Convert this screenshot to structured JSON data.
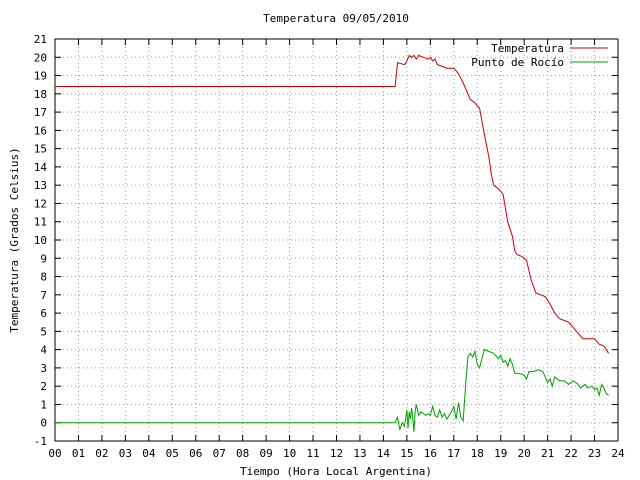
{
  "chart_data": {
    "type": "line",
    "title": "Temperatura 09/05/2010",
    "xlabel": "Tiempo (Hora Local Argentina)",
    "ylabel": "Temperatura (Grados Celsius)",
    "xlim": [
      0,
      24
    ],
    "ylim": [
      -1,
      21
    ],
    "x_ticks": [
      0,
      1,
      2,
      3,
      4,
      5,
      6,
      7,
      8,
      9,
      10,
      11,
      12,
      13,
      14,
      15,
      16,
      17,
      18,
      19,
      20,
      21,
      22,
      23,
      24
    ],
    "x_tick_labels": [
      "00",
      "01",
      "02",
      "03",
      "04",
      "05",
      "06",
      "07",
      "08",
      "09",
      "10",
      "11",
      "12",
      "13",
      "14",
      "15",
      "16",
      "17",
      "18",
      "19",
      "20",
      "21",
      "22",
      "23",
      "24"
    ],
    "y_ticks": [
      -1,
      0,
      1,
      2,
      3,
      4,
      5,
      6,
      7,
      8,
      9,
      10,
      11,
      12,
      13,
      14,
      15,
      16,
      17,
      18,
      19,
      20,
      21
    ],
    "grid": true,
    "legend_position": "top-right",
    "series": [
      {
        "name": "Temperatura",
        "color": "#cc0000",
        "points": [
          [
            0,
            18.4
          ],
          [
            14.5,
            18.4
          ],
          [
            14.6,
            19.7
          ],
          [
            14.9,
            19.6
          ],
          [
            15.0,
            19.8
          ],
          [
            15.1,
            20.1
          ],
          [
            15.2,
            20.0
          ],
          [
            15.3,
            20.1
          ],
          [
            15.4,
            19.9
          ],
          [
            15.5,
            20.1
          ],
          [
            15.7,
            20.0
          ],
          [
            15.9,
            19.9
          ],
          [
            16.0,
            20.0
          ],
          [
            16.1,
            19.8
          ],
          [
            16.2,
            19.9
          ],
          [
            16.3,
            19.6
          ],
          [
            16.5,
            19.5
          ],
          [
            16.7,
            19.4
          ],
          [
            17.0,
            19.4
          ],
          [
            17.2,
            19.1
          ],
          [
            17.4,
            18.6
          ],
          [
            17.6,
            18.0
          ],
          [
            17.7,
            17.7
          ],
          [
            17.9,
            17.5
          ],
          [
            18.1,
            17.2
          ],
          [
            18.3,
            15.8
          ],
          [
            18.5,
            14.5
          ],
          [
            18.6,
            13.6
          ],
          [
            18.7,
            13.0
          ],
          [
            18.9,
            12.8
          ],
          [
            19.1,
            12.5
          ],
          [
            19.3,
            11.0
          ],
          [
            19.5,
            10.2
          ],
          [
            19.6,
            9.4
          ],
          [
            19.7,
            9.2
          ],
          [
            19.9,
            9.1
          ],
          [
            20.1,
            8.9
          ],
          [
            20.3,
            7.8
          ],
          [
            20.5,
            7.1
          ],
          [
            20.7,
            7.0
          ],
          [
            20.9,
            6.9
          ],
          [
            21.1,
            6.5
          ],
          [
            21.3,
            6.0
          ],
          [
            21.5,
            5.7
          ],
          [
            21.7,
            5.6
          ],
          [
            21.9,
            5.5
          ],
          [
            22.1,
            5.2
          ],
          [
            22.3,
            4.9
          ],
          [
            22.5,
            4.6
          ],
          [
            22.8,
            4.6
          ],
          [
            23.0,
            4.6
          ],
          [
            23.2,
            4.3
          ],
          [
            23.4,
            4.2
          ],
          [
            23.6,
            3.8
          ]
        ]
      },
      {
        "name": "Punto de Rocío",
        "color": "#00a000",
        "points": [
          [
            0,
            0.0
          ],
          [
            14.5,
            0.0
          ],
          [
            14.6,
            0.3
          ],
          [
            14.7,
            -0.4
          ],
          [
            14.8,
            0.0
          ],
          [
            14.9,
            -0.2
          ],
          [
            15.0,
            0.7
          ],
          [
            15.05,
            -0.3
          ],
          [
            15.1,
            0.6
          ],
          [
            15.15,
            0.2
          ],
          [
            15.2,
            0.8
          ],
          [
            15.25,
            0.3
          ],
          [
            15.3,
            -0.5
          ],
          [
            15.35,
            0.6
          ],
          [
            15.4,
            1.0
          ],
          [
            15.5,
            0.4
          ],
          [
            15.6,
            0.6
          ],
          [
            15.7,
            0.5
          ],
          [
            15.8,
            0.4
          ],
          [
            15.9,
            0.5
          ],
          [
            16.0,
            0.4
          ],
          [
            16.1,
            0.9
          ],
          [
            16.2,
            0.4
          ],
          [
            16.3,
            0.3
          ],
          [
            16.4,
            0.7
          ],
          [
            16.5,
            0.3
          ],
          [
            16.6,
            0.5
          ],
          [
            16.7,
            0.2
          ],
          [
            16.8,
            0.4
          ],
          [
            16.9,
            0.6
          ],
          [
            17.0,
            0.9
          ],
          [
            17.1,
            0.2
          ],
          [
            17.2,
            1.1
          ],
          [
            17.3,
            0.3
          ],
          [
            17.4,
            0.1
          ],
          [
            17.5,
            2.0
          ],
          [
            17.6,
            3.6
          ],
          [
            17.7,
            3.8
          ],
          [
            17.8,
            3.6
          ],
          [
            17.9,
            3.9
          ],
          [
            18.0,
            3.2
          ],
          [
            18.1,
            3.0
          ],
          [
            18.2,
            3.5
          ],
          [
            18.3,
            4.0
          ],
          [
            18.5,
            3.9
          ],
          [
            18.7,
            3.8
          ],
          [
            18.9,
            3.5
          ],
          [
            19.0,
            3.7
          ],
          [
            19.1,
            3.3
          ],
          [
            19.2,
            3.4
          ],
          [
            19.3,
            3.1
          ],
          [
            19.4,
            3.5
          ],
          [
            19.5,
            3.2
          ],
          [
            19.6,
            2.7
          ],
          [
            19.8,
            2.7
          ],
          [
            20.0,
            2.6
          ],
          [
            20.1,
            2.4
          ],
          [
            20.2,
            2.8
          ],
          [
            20.4,
            2.8
          ],
          [
            20.6,
            2.9
          ],
          [
            20.8,
            2.8
          ],
          [
            21.0,
            2.2
          ],
          [
            21.1,
            2.4
          ],
          [
            21.2,
            2.0
          ],
          [
            21.3,
            2.5
          ],
          [
            21.5,
            2.3
          ],
          [
            21.7,
            2.3
          ],
          [
            21.9,
            2.1
          ],
          [
            22.1,
            2.3
          ],
          [
            22.3,
            2.1
          ],
          [
            22.4,
            1.9
          ],
          [
            22.5,
            2.0
          ],
          [
            22.6,
            2.1
          ],
          [
            22.7,
            1.9
          ],
          [
            22.9,
            2.0
          ],
          [
            23.0,
            1.8
          ],
          [
            23.1,
            1.9
          ],
          [
            23.2,
            1.5
          ],
          [
            23.3,
            2.1
          ],
          [
            23.4,
            1.9
          ],
          [
            23.5,
            1.6
          ],
          [
            23.6,
            1.5
          ]
        ]
      }
    ]
  }
}
